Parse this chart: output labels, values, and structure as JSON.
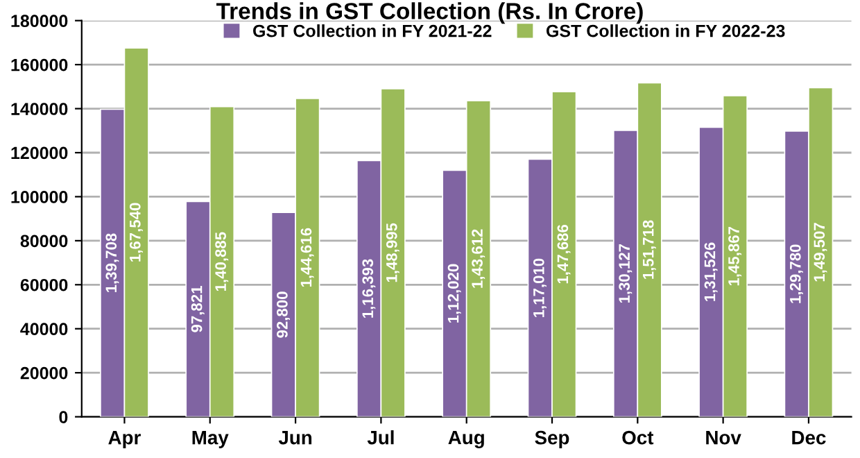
{
  "chart_data": {
    "type": "bar",
    "title": "Trends in GST Collection (Rs. In Crore)",
    "categories": [
      "Apr",
      "May",
      "Jun",
      "Jul",
      "Aug",
      "Sep",
      "Oct",
      "Nov",
      "Dec"
    ],
    "series": [
      {
        "name": "GST Collection in FY 2021-22",
        "color": "#8064a2",
        "values": [
          139708,
          97821,
          92800,
          116393,
          112020,
          117010,
          130127,
          131526,
          129780
        ],
        "value_labels": [
          "1,39,708",
          "97,821",
          "92,800",
          "1,16,393",
          "1,12,020",
          "1,17,010",
          "1,30,127",
          "1,31,526",
          "1,29,780"
        ]
      },
      {
        "name": "GST Collection in FY 2022-23",
        "color": "#9bbb59",
        "values": [
          167540,
          140885,
          144616,
          148995,
          143612,
          147686,
          151718,
          145867,
          149507
        ],
        "value_labels": [
          "1,67,540",
          "1,40,885",
          "1,44,616",
          "1,48,995",
          "1,43,612",
          "1,47,686",
          "1,51,718",
          "1,45,867",
          "1,49,507"
        ]
      }
    ],
    "ylim": [
      0,
      180000
    ],
    "yticks": [
      0,
      20000,
      40000,
      60000,
      80000,
      100000,
      120000,
      140000,
      160000,
      180000
    ],
    "grid": "y",
    "legend": "top"
  }
}
